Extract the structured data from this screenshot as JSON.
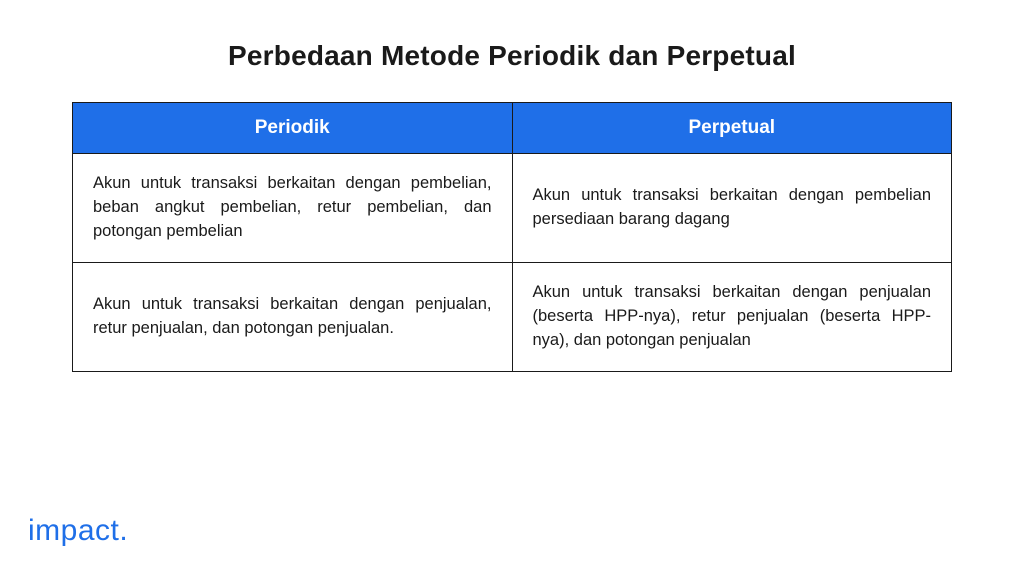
{
  "title": "Perbedaan Metode Periodik dan Perpetual",
  "table": {
    "type": "table",
    "header_bg": "#1f6fe8",
    "header_fg": "#ffffff",
    "border_color": "#1a1a1a",
    "cell_fg": "#1a1a1a",
    "columns": [
      {
        "label": "Periodik",
        "width_pct": 50
      },
      {
        "label": "Perpetual",
        "width_pct": 50
      }
    ],
    "rows": [
      [
        "Akun untuk transaksi berkaitan dengan pembelian, beban angkut pembelian, retur pembelian, dan potongan pembelian",
        "Akun untuk transaksi berkaitan dengan pembelian persediaan barang dagang"
      ],
      [
        "Akun untuk transaksi berkaitan dengan penjualan, retur penjualan, dan potongan penjualan.",
        "Akun untuk transaksi berkaitan dengan penjualan (beserta HPP-nya), retur penjualan (beserta HPP-nya), dan potongan penjualan"
      ]
    ]
  },
  "logo": {
    "text": "impact.",
    "color": "#1f6fe8"
  }
}
